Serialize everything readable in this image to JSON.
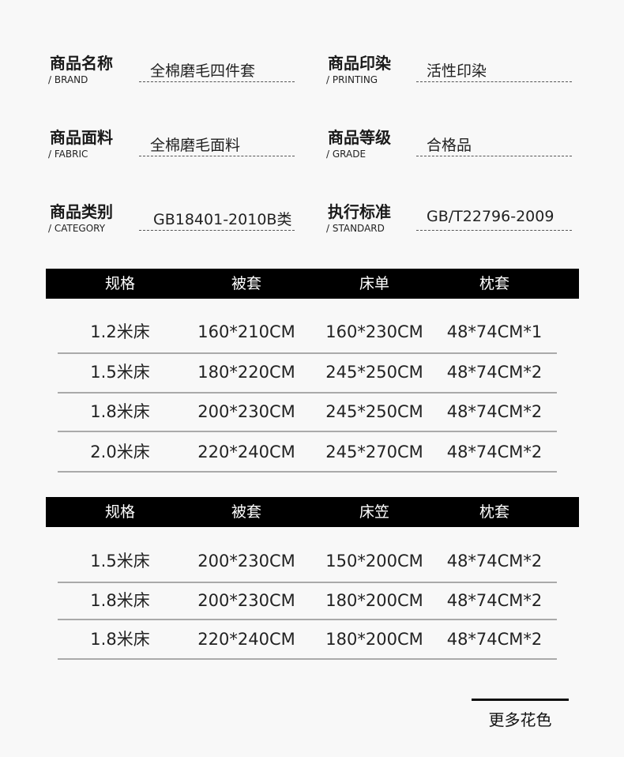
{
  "info": [
    {
      "label": "商品名称",
      "en": "/ BRAND",
      "value": "全棉磨毛四件套"
    },
    {
      "label": "商品印染",
      "en": "/ PRINTING",
      "value": "活性印染"
    },
    {
      "label": "商品面料",
      "en": "/ FABRIC",
      "value": "全棉磨毛面料"
    },
    {
      "label": "商品等级",
      "en": "/ GRADE",
      "value": "合格品"
    },
    {
      "label": "商品类别",
      "en": "/ CATEGORY",
      "value": "GB18401-2010B类"
    },
    {
      "label": "执行标准",
      "en": "/ STANDARD",
      "value": "GB/T22796-2009"
    }
  ],
  "table1": {
    "headers": [
      "规格",
      "被套",
      "床单",
      "枕套"
    ],
    "rows": [
      [
        "1.2米床",
        "160*210CM",
        "160*230CM",
        "48*74CM*1"
      ],
      [
        "1.5米床",
        "180*220CM",
        "245*250CM",
        "48*74CM*2"
      ],
      [
        "1.8米床",
        "200*230CM",
        "245*250CM",
        "48*74CM*2"
      ],
      [
        "2.0米床",
        "220*240CM",
        "245*270CM",
        "48*74CM*2"
      ]
    ]
  },
  "table2": {
    "headers": [
      "规格",
      "被套",
      "床笠",
      "枕套"
    ],
    "rows": [
      [
        "1.5米床",
        "200*230CM",
        "150*200CM",
        "48*74CM*2"
      ],
      [
        "1.8米床",
        "200*230CM",
        "180*200CM",
        "48*74CM*2"
      ],
      [
        "1.8米床",
        "220*240CM",
        "180*200CM",
        "48*74CM*2"
      ]
    ]
  },
  "more_colors": "更多花色"
}
